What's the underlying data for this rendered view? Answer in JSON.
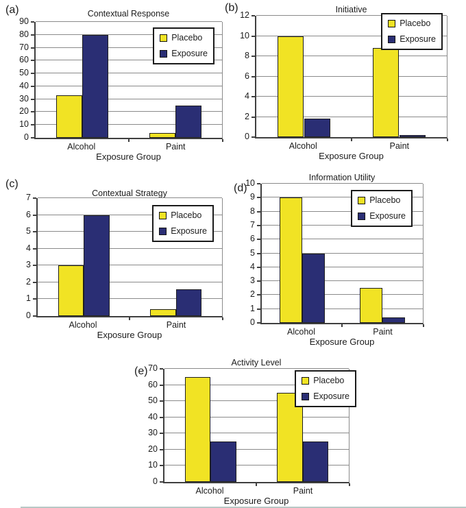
{
  "chart_data": [
    {
      "type": "bar",
      "panel_label": "(a)",
      "title": "Contextual Response",
      "xlabel": "Exposure Group",
      "ylabel": "",
      "categories": [
        "Alcohol",
        "Paint"
      ],
      "series": [
        {
          "name": "Placebo",
          "values": [
            33,
            4
          ]
        },
        {
          "name": "Exposure",
          "values": [
            80,
            25
          ]
        }
      ],
      "ylim": [
        0,
        90
      ],
      "ytick_step": 10,
      "grid": true,
      "legend_position": "top-right"
    },
    {
      "type": "bar",
      "panel_label": "(b)",
      "title": "Initiative",
      "xlabel": "Exposure Group",
      "ylabel": "",
      "categories": [
        "Alcohol",
        "Paint"
      ],
      "series": [
        {
          "name": "Placebo",
          "values": [
            10,
            8.8
          ]
        },
        {
          "name": "Exposure",
          "values": [
            1.8,
            0.2
          ]
        }
      ],
      "ylim": [
        0,
        12
      ],
      "ytick_step": 2,
      "grid": true,
      "legend_position": "top-right"
    },
    {
      "type": "bar",
      "panel_label": "(c)",
      "title": "Contextual Strategy",
      "xlabel": "Exposure Group",
      "ylabel": "",
      "categories": [
        "Alcohol",
        "Paint"
      ],
      "series": [
        {
          "name": "Placebo",
          "values": [
            3,
            0.4
          ]
        },
        {
          "name": "Exposure",
          "values": [
            6,
            1.6
          ]
        }
      ],
      "ylim": [
        0,
        7
      ],
      "ytick_step": 1,
      "grid": true,
      "legend_position": "top-right"
    },
    {
      "type": "bar",
      "panel_label": "(d)",
      "title": "Information Utility",
      "xlabel": "Exposure Group",
      "ylabel": "",
      "categories": [
        "Alcohol",
        "Paint"
      ],
      "series": [
        {
          "name": "Placebo",
          "values": [
            9,
            2.5
          ]
        },
        {
          "name": "Exposure",
          "values": [
            5,
            0.4
          ]
        }
      ],
      "ylim": [
        0,
        10
      ],
      "ytick_step": 1,
      "grid": true,
      "legend_position": "top-right"
    },
    {
      "type": "bar",
      "panel_label": "(e)",
      "title": "Activity Level",
      "xlabel": "Exposure Group",
      "ylabel": "",
      "categories": [
        "Alcohol",
        "Paint"
      ],
      "series": [
        {
          "name": "Placebo",
          "values": [
            65,
            55
          ]
        },
        {
          "name": "Exposure",
          "values": [
            25,
            25
          ]
        }
      ],
      "ylim": [
        0,
        70
      ],
      "ytick_step": 10,
      "grid": true,
      "legend_position": "top-right"
    }
  ],
  "colors": {
    "series": [
      "#F1E324",
      "#2A2E74"
    ],
    "placebo": "#F1E324",
    "exposure": "#2A2E74",
    "gridline": "#8A8A8A",
    "axis": "#3F3F3F",
    "text": "#1B1B1B",
    "legend_border": "#1A1A1A"
  }
}
